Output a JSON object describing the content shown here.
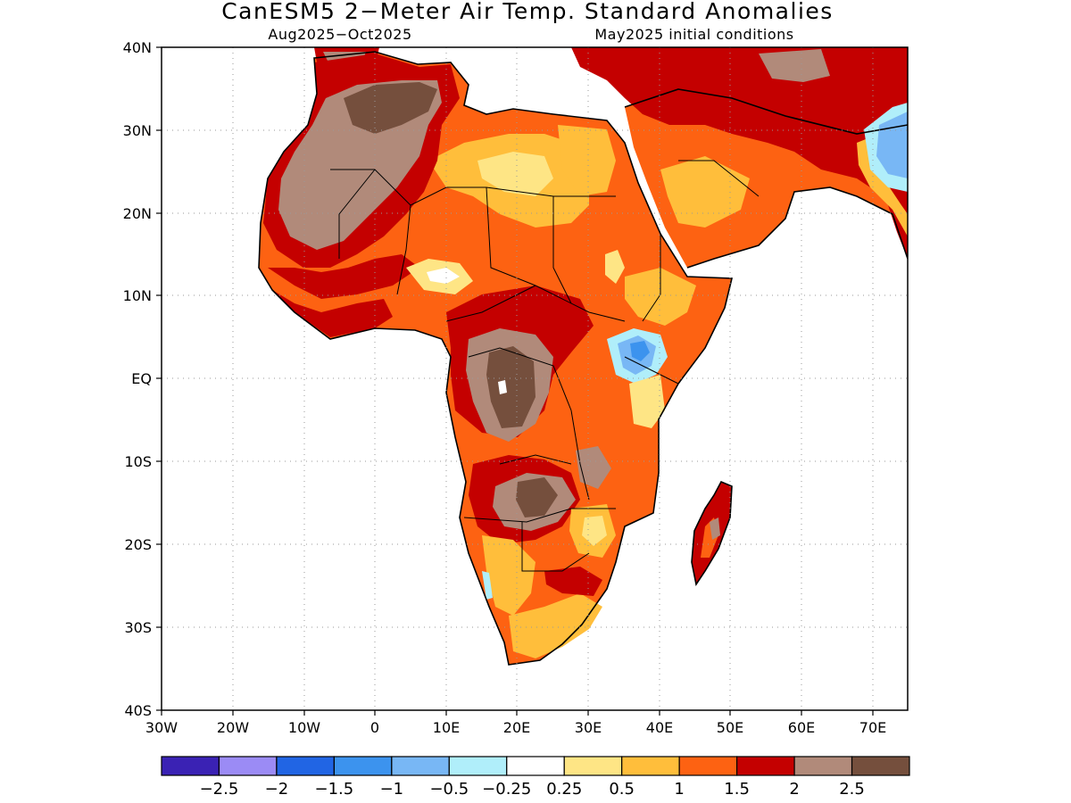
{
  "title": "CanESM5 2−Meter Air Temp. Standard Anomalies",
  "subtitle_left": "Aug2025−Oct2025",
  "subtitle_right": "May2025 initial conditions",
  "lat_labels": [
    "40N",
    "30N",
    "20N",
    "10N",
    "EQ",
    "10S",
    "20S",
    "30S",
    "40S"
  ],
  "lon_labels": [
    "30W",
    "20W",
    "10W",
    "0",
    "10E",
    "20E",
    "30E",
    "40E",
    "50E",
    "60E",
    "70E"
  ],
  "colorbar": {
    "colors": [
      "#3a22b4",
      "#9b8bf5",
      "#2165e4",
      "#3c93ee",
      "#78b7f5",
      "#b0eefa",
      "#ffffff",
      "#fee585",
      "#ffbe3b",
      "#fd6212",
      "#c40000",
      "#b18a7a",
      "#754f3d"
    ],
    "labels": [
      "−2.5",
      "−2",
      "−1.5",
      "−1",
      "−0.5",
      "−0.25",
      "0.25",
      "0.5",
      "1",
      "1.5",
      "2",
      "2.5"
    ]
  },
  "icons": {
    "map": "africa-anomaly-map"
  }
}
